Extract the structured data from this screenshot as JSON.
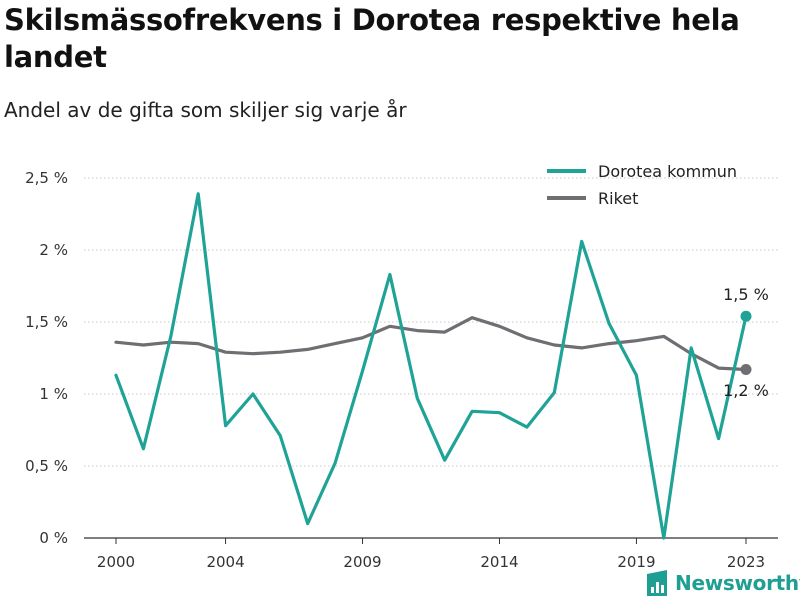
{
  "title": "Skilsmässofrekvens i Dorotea respektive hela landet",
  "subtitle": "Andel av de gifta som skiljer sig varje år",
  "brand": {
    "name": "Newsworthy",
    "icon": "bar-chart-logo-icon",
    "color": "#1f9e93"
  },
  "chart_data": {
    "type": "line",
    "x": [
      2000,
      2001,
      2002,
      2003,
      2004,
      2005,
      2006,
      2007,
      2008,
      2009,
      2010,
      2011,
      2012,
      2013,
      2014,
      2015,
      2016,
      2017,
      2018,
      2019,
      2020,
      2021,
      2022,
      2023
    ],
    "xticks": [
      2000,
      2004,
      2009,
      2014,
      2019,
      2023
    ],
    "yticks": [
      0,
      0.5,
      1,
      1.5,
      2,
      2.5
    ],
    "ytick_labels": [
      "0 %",
      "0,5 %",
      "1 %",
      "1,5 %",
      "2 %",
      "2,5 %"
    ],
    "ylim": [
      0,
      2.5
    ],
    "xlim": [
      2000,
      2023
    ],
    "grid": "horizontal",
    "legend_position": "top-right",
    "series": [
      {
        "name": "Dorotea kommun",
        "color": "#1fa396",
        "values": [
          1.13,
          0.62,
          1.4,
          2.39,
          0.78,
          1.0,
          0.71,
          0.1,
          0.52,
          1.16,
          1.83,
          0.97,
          0.54,
          0.88,
          0.87,
          0.77,
          1.01,
          2.06,
          1.49,
          1.13,
          0.0,
          1.32,
          0.69,
          1.54
        ],
        "end_label": "1,5 %"
      },
      {
        "name": "Riket",
        "color": "#6e6e73",
        "values": [
          1.36,
          1.34,
          1.36,
          1.35,
          1.29,
          1.28,
          1.29,
          1.31,
          1.35,
          1.39,
          1.47,
          1.44,
          1.43,
          1.53,
          1.47,
          1.39,
          1.34,
          1.32,
          1.35,
          1.37,
          1.4,
          1.28,
          1.18,
          1.17
        ],
        "end_label": "1,2 %"
      }
    ]
  }
}
